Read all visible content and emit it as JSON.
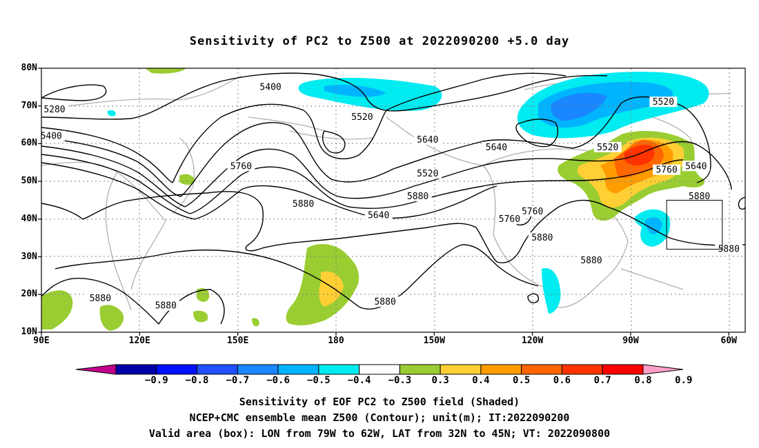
{
  "title": "Sensitivity of PC2 to Z500 at 2022090200 +5.0 day",
  "map": {
    "lon_range": [
      90,
      305
    ],
    "lat_range": [
      10,
      80
    ],
    "lat_labels": [
      {
        "value": 80,
        "label": "80N"
      },
      {
        "value": 70,
        "label": "70N"
      },
      {
        "value": 60,
        "label": "60N"
      },
      {
        "value": 50,
        "label": "50N"
      },
      {
        "value": 40,
        "label": "40N"
      },
      {
        "value": 30,
        "label": "30N"
      },
      {
        "value": 20,
        "label": "20N"
      },
      {
        "value": 10,
        "label": "10N"
      }
    ],
    "lon_labels": [
      {
        "value": 90,
        "label": "90E"
      },
      {
        "value": 120,
        "label": "120E"
      },
      {
        "value": 150,
        "label": "150E"
      },
      {
        "value": 180,
        "label": "180"
      },
      {
        "value": 210,
        "label": "150W"
      },
      {
        "value": 240,
        "label": "120W"
      },
      {
        "value": 270,
        "label": "90W"
      },
      {
        "value": 300,
        "label": "60W"
      }
    ],
    "grid": "dotted",
    "contour_labels": [
      {
        "text": "5400",
        "lon": 160,
        "lat": 75
      },
      {
        "text": "5280",
        "lon": 94,
        "lat": 69
      },
      {
        "text": "5400",
        "lon": 93,
        "lat": 62
      },
      {
        "text": "5520",
        "lon": 208,
        "lat": 52
      },
      {
        "text": "5520",
        "lon": 188,
        "lat": 67
      },
      {
        "text": "5520",
        "lon": 263,
        "lat": 59
      },
      {
        "text": "5520",
        "lon": 280,
        "lat": 71
      },
      {
        "text": "5760",
        "lon": 151,
        "lat": 54
      },
      {
        "text": "5640",
        "lon": 208,
        "lat": 61
      },
      {
        "text": "5640",
        "lon": 290,
        "lat": 54
      },
      {
        "text": "5880",
        "lon": 205,
        "lat": 46
      },
      {
        "text": "5760",
        "lon": 240,
        "lat": 42
      },
      {
        "text": "5880",
        "lon": 170,
        "lat": 44
      },
      {
        "text": "5640",
        "lon": 193,
        "lat": 41
      },
      {
        "text": "5880",
        "lon": 291,
        "lat": 46
      },
      {
        "text": "5760",
        "lon": 281,
        "lat": 53
      },
      {
        "text": "5880",
        "lon": 258,
        "lat": 29
      },
      {
        "text": "5880",
        "lon": 300,
        "lat": 32
      },
      {
        "text": "5880",
        "lon": 108,
        "lat": 19
      },
      {
        "text": "5880",
        "lon": 195,
        "lat": 18
      },
      {
        "text": "5880",
        "lon": 243,
        "lat": 35
      },
      {
        "text": "5760",
        "lon": 233,
        "lat": 40
      },
      {
        "text": "5880",
        "lon": 128,
        "lat": 17
      },
      {
        "text": "5640",
        "lon": 229,
        "lat": 59
      }
    ],
    "valid_box": {
      "lon": [
        281,
        298
      ],
      "lat": [
        32,
        45
      ]
    }
  },
  "colorbar": {
    "colors": [
      "#c0008a",
      "#0000a8",
      "#0010ff",
      "#2050ff",
      "#1a86ff",
      "#00b4ff",
      "#00ecf0",
      "#ffffff",
      "#9acd32",
      "#ffcf33",
      "#ff9c00",
      "#ff6600",
      "#ff3300",
      "#ff0000",
      "#ff9fc8"
    ],
    "labels": [
      "−0.9",
      "−0.8",
      "−0.7",
      "−0.6",
      "−0.5",
      "−0.4",
      "−0.3",
      "0.3",
      "0.4",
      "0.5",
      "0.6",
      "0.7",
      "0.8",
      "0.9"
    ]
  },
  "caption": {
    "line1": "Sensitivity of EOF PC2 to Z500 field (Shaded)",
    "line2": "NCEP+CMC ensemble mean Z500 (Contour); unit(m); IT:2022090200",
    "line3": "Valid area (box): LON from 79W to 62W, LAT from 32N to 45N; VT: 2022090800"
  }
}
